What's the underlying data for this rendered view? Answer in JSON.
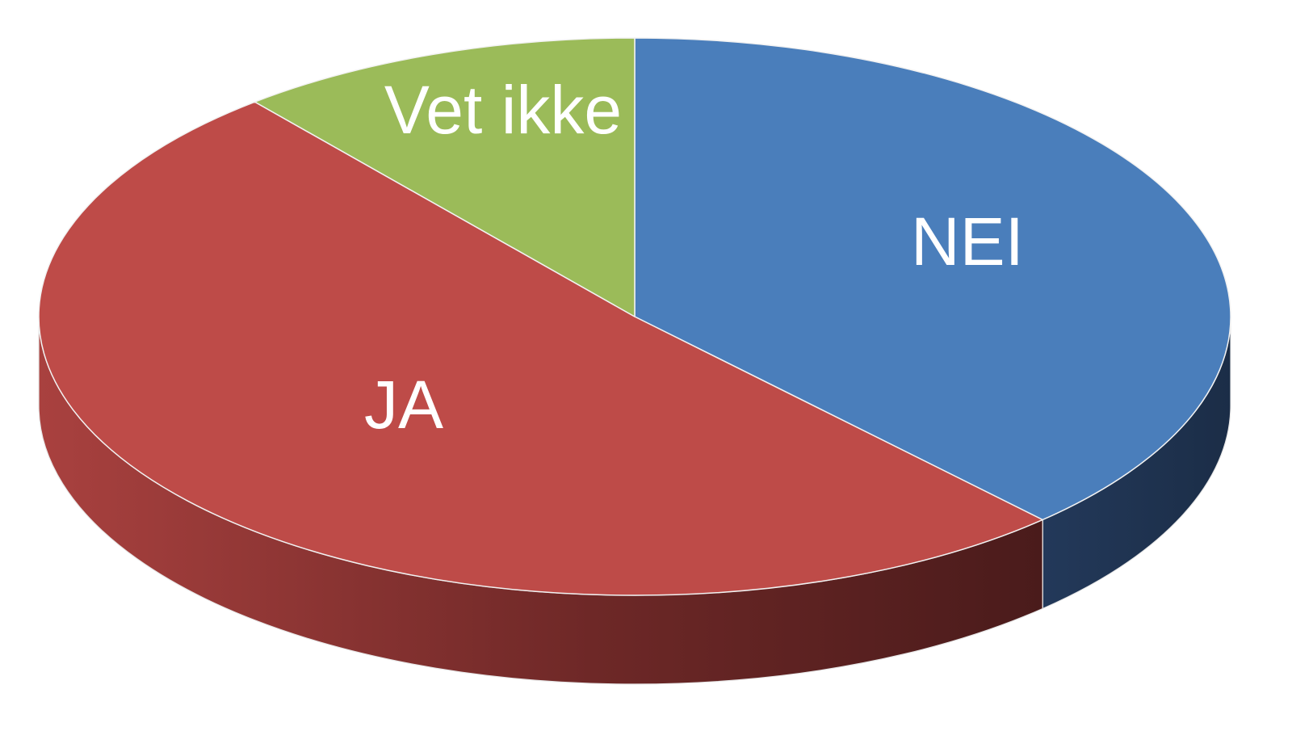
{
  "chart_data": {
    "type": "pie",
    "style": "3d",
    "title": "",
    "slices": [
      {
        "label": "NEI",
        "value": 38,
        "color": "#4a7ebb",
        "side_color": "#1f3350"
      },
      {
        "label": "JA",
        "value": 51,
        "color": "#be4b48",
        "side_color": "#7a2b29"
      },
      {
        "label": "Vet ikke",
        "value": 11,
        "color": "#9bbb59",
        "side_color": "#5e7433"
      }
    ],
    "legend": "none"
  }
}
